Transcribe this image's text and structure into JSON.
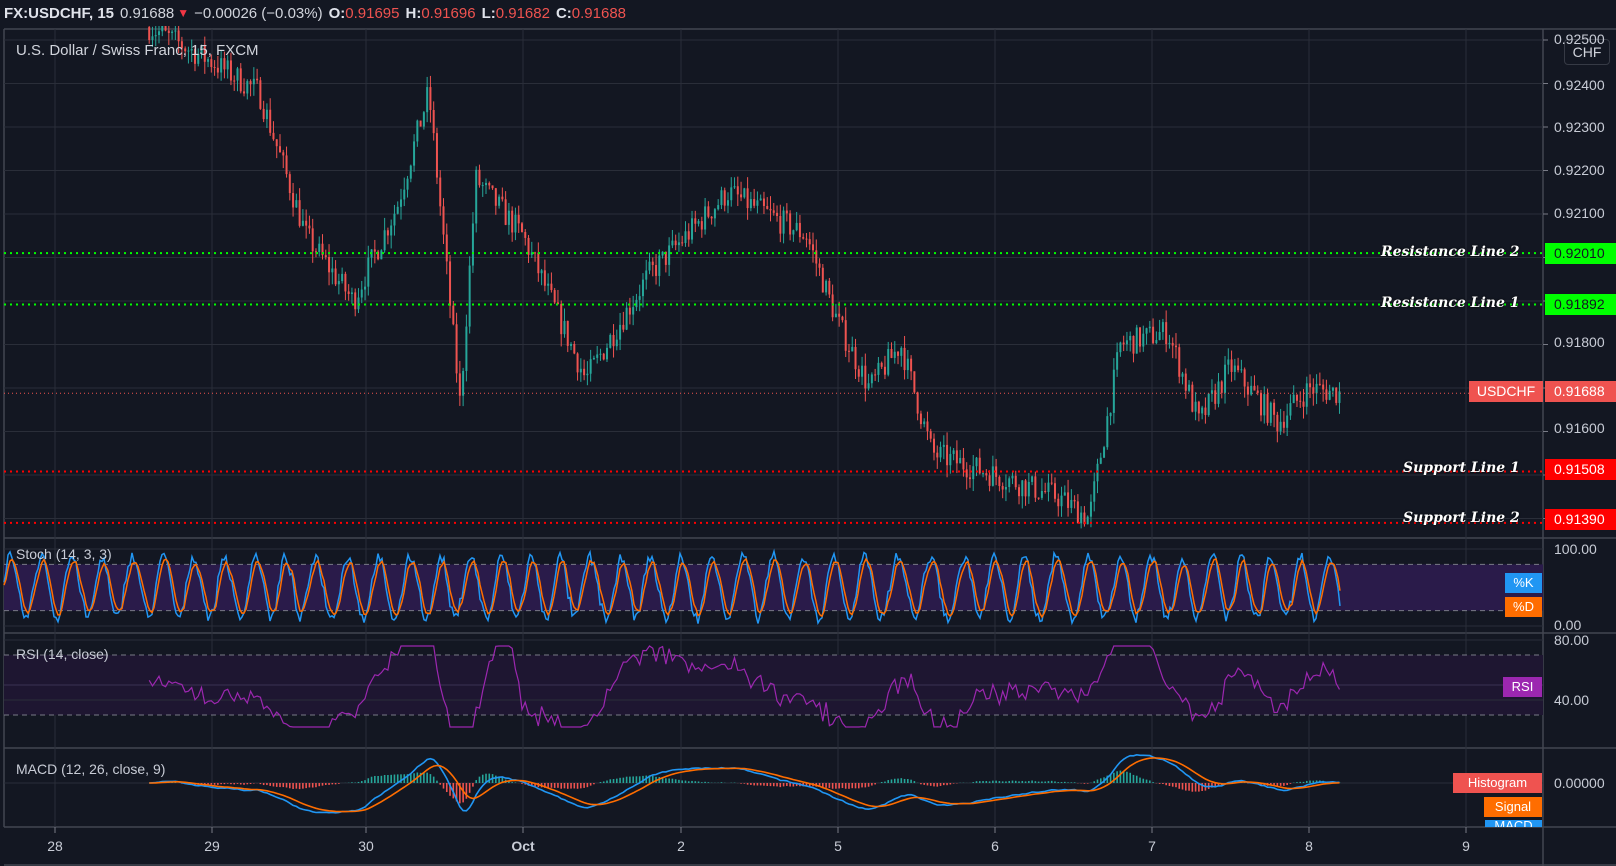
{
  "header": {
    "symbol": "FX:USDCHF, 15",
    "last": "0.91688",
    "change_arrow": "▼",
    "change": "−0.00026 (−0.03%)",
    "o_label": "O:",
    "o": "0.91695",
    "h_label": "H:",
    "h": "0.91696",
    "l_label": "L:",
    "l": "0.91682",
    "c_label": "C:",
    "c": "0.91688"
  },
  "main_pane": {
    "title": "U.S. Dollar / Swiss Franc, 15, FXCM",
    "currency_button": "CHF",
    "price_ticks": [
      "0.92500",
      "0.92400",
      "0.92300",
      "0.92200",
      "0.92100",
      "0.91800",
      "0.91600"
    ],
    "current_price_label": "USDCHF",
    "current_price": "0.91688",
    "lines": [
      {
        "label": "Resistance Line 2",
        "value": "0.92010",
        "color": "#00ff00"
      },
      {
        "label": "Resistance Line 1",
        "value": "0.91892",
        "color": "#00ff00"
      },
      {
        "label": "Support Line 1",
        "value": "0.91508",
        "color": "#ff0000"
      },
      {
        "label": "Support Line 2",
        "value": "0.91390",
        "color": "#ff0000"
      }
    ]
  },
  "stoch_pane": {
    "title": "Stoch (14, 3, 3)",
    "ticks": [
      "100.00",
      "0.00"
    ],
    "k_label": "%K",
    "d_label": "%D"
  },
  "rsi_pane": {
    "title": "RSI (14, close)",
    "ticks": [
      "80.00",
      "40.00"
    ],
    "tag": "RSI"
  },
  "macd_pane": {
    "title": "MACD (12, 26, close, 9)",
    "ticks": [
      "0.00000"
    ],
    "histogram_label": "Histogram",
    "signal_label": "Signal",
    "macd_label": "MACD"
  },
  "x_axis": {
    "labels": [
      "28",
      "29",
      "30",
      "Oct",
      "2",
      "5",
      "6",
      "7",
      "8",
      "9"
    ]
  },
  "colors": {
    "background": "#131722",
    "up": "#26a69a",
    "down": "#ef5350",
    "resistance": "#00ff00",
    "support": "#ff0000",
    "k": "#2196f3",
    "d": "#ff6d00",
    "rsi": "#9c27b0",
    "band": "#2a1b4a"
  },
  "chart_data": {
    "type": "candlestick",
    "title": "U.S. Dollar / Swiss Franc, 15, FXCM",
    "symbol": "FX:USDCHF",
    "interval": "15",
    "xlabel": "",
    "ylabel": "CHF",
    "x_ticks": [
      "28",
      "29",
      "30",
      "Oct",
      "2",
      "5",
      "6",
      "7",
      "8",
      "9"
    ],
    "ylim": [
      0.9138,
      0.9253
    ],
    "y_ticks": [
      0.925,
      0.924,
      0.923,
      0.922,
      0.921,
      0.918,
      0.916
    ],
    "horizontal_lines": [
      {
        "name": "Resistance Line 2",
        "value": 0.9201
      },
      {
        "name": "Resistance Line 1",
        "value": 0.91892
      },
      {
        "name": "Support Line 1",
        "value": 0.91508
      },
      {
        "name": "Support Line 2",
        "value": 0.9139
      }
    ],
    "last": {
      "open": 0.91695,
      "high": 0.91696,
      "low": 0.91682,
      "close": 0.91688,
      "change": -0.00026,
      "change_pct": -0.03
    },
    "price_path": [
      [
        0.9253,
        "28.6"
      ],
      [
        0.9245,
        "29.0"
      ],
      [
        0.9238,
        "29.3"
      ],
      [
        0.9205,
        "29.6"
      ],
      [
        0.919,
        "29.9"
      ],
      [
        0.9212,
        "30.2"
      ],
      [
        0.9238,
        "30.4"
      ],
      [
        0.9166,
        "30.6"
      ],
      [
        0.9218,
        "30.7"
      ],
      [
        0.9205,
        "Oct.0"
      ],
      [
        0.9172,
        "Oct.4"
      ],
      [
        0.9196,
        "Oct.8"
      ],
      [
        0.9215,
        "2.3"
      ],
      [
        0.9205,
        "2.8"
      ],
      [
        0.9185,
        "5.0"
      ],
      [
        0.917,
        "5.2"
      ],
      [
        0.918,
        "5.4"
      ],
      [
        0.9155,
        "5.6"
      ],
      [
        0.915,
        "6.0"
      ],
      [
        0.9145,
        "6.4"
      ],
      [
        0.914,
        "6.6"
      ],
      [
        0.918,
        "6.8"
      ],
      [
        0.9183,
        "7.1"
      ],
      [
        0.9162,
        "7.3"
      ],
      [
        0.9175,
        "7.5"
      ],
      [
        0.9162,
        "7.8"
      ],
      [
        0.917,
        "8.0"
      ],
      [
        0.91688,
        "8.2"
      ]
    ],
    "indicators": {
      "stochastic": {
        "params": [
          14,
          3,
          3
        ],
        "ylim": [
          0,
          100
        ],
        "bands": [
          80,
          20
        ]
      },
      "rsi": {
        "params": [
          14,
          "close"
        ],
        "ylim": [
          20,
          80
        ],
        "bands": [
          70,
          30
        ]
      },
      "macd": {
        "params": [
          12,
          26,
          "close",
          9
        ],
        "zero_line": 0
      }
    }
  }
}
